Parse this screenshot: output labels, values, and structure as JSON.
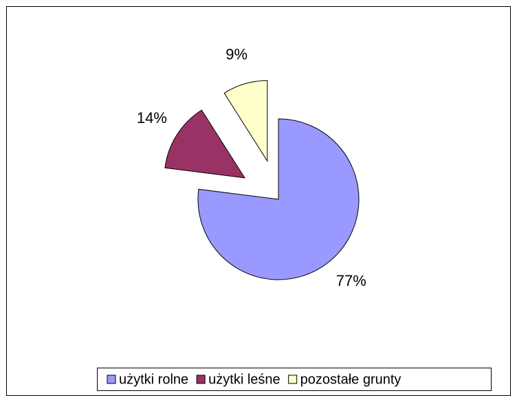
{
  "chart_data": {
    "type": "pie",
    "categories": [
      "użytki rolne",
      "użytki leśne",
      "pozostałe grunty"
    ],
    "values": [
      77,
      14,
      9
    ],
    "value_labels": [
      "77%",
      "14%",
      "9%"
    ],
    "colors": [
      "#9999ff",
      "#993366",
      "#ffffcc"
    ],
    "legend": "bottom"
  }
}
